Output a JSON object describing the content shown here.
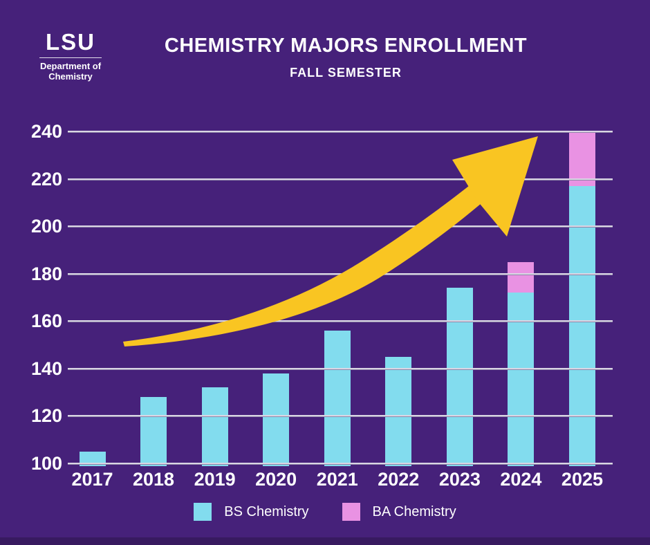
{
  "header": {
    "logo": {
      "acronym": "LSU",
      "unit_line1": "Department of",
      "unit_line2": "Chemistry"
    },
    "title": "CHEMISTRY MAJORS ENROLLMENT",
    "subtitle": "FALL SEMESTER"
  },
  "chart_data": {
    "type": "bar",
    "stacked": true,
    "title": "CHEMISTRY MAJORS ENROLLMENT",
    "subtitle": "FALL SEMESTER",
    "categories": [
      "2017",
      "2018",
      "2019",
      "2020",
      "2021",
      "2022",
      "2023",
      "2024",
      "2025"
    ],
    "series": [
      {
        "name": "BS Chemistry",
        "values": [
          105,
          128,
          132,
          138,
          156,
          145,
          174,
          172,
          217
        ]
      },
      {
        "name": "BA Chemistry",
        "values": [
          0,
          0,
          0,
          0,
          0,
          0,
          0,
          13,
          23
        ]
      }
    ],
    "stack_totals": [
      105,
      128,
      132,
      138,
      156,
      145,
      174,
      185,
      240
    ],
    "xlabel": "",
    "ylabel": "",
    "ylim": [
      100,
      240
    ],
    "y_ticks": [
      240,
      220,
      200,
      180,
      160,
      140,
      120,
      100
    ],
    "grid": true,
    "legend_position": "bottom",
    "annotations": [
      "yellow upward trend arrow over bars"
    ]
  },
  "legend": {
    "items": [
      {
        "label": "BS Chemistry",
        "color": "#82DCEE"
      },
      {
        "label": "BA Chemistry",
        "color": "#E992E3"
      }
    ]
  },
  "colors": {
    "background": "#46217A",
    "footer_band": "#381A60",
    "bar_bs": "#82DCEE",
    "bar_ba": "#E992E3",
    "arrow": "#F9C522",
    "gridline": "#DAD6E4",
    "text": "#FFFFFF"
  }
}
